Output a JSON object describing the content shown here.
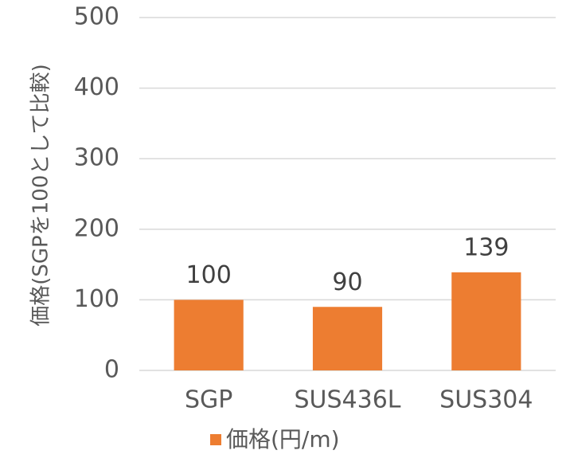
{
  "chart_data": {
    "type": "bar",
    "y_label": "価格(SGPを100として比較)",
    "categories": [
      "SGP",
      "SUS436L",
      "SUS304"
    ],
    "series": [
      {
        "name": "価格(円/m)",
        "color": "#ED7D31",
        "values": [
          100,
          90,
          139
        ]
      }
    ],
    "ylim": [
      0,
      500
    ],
    "yticks": [
      0,
      100,
      200,
      300,
      400,
      500
    ],
    "grid": true,
    "legend": "bottom"
  }
}
